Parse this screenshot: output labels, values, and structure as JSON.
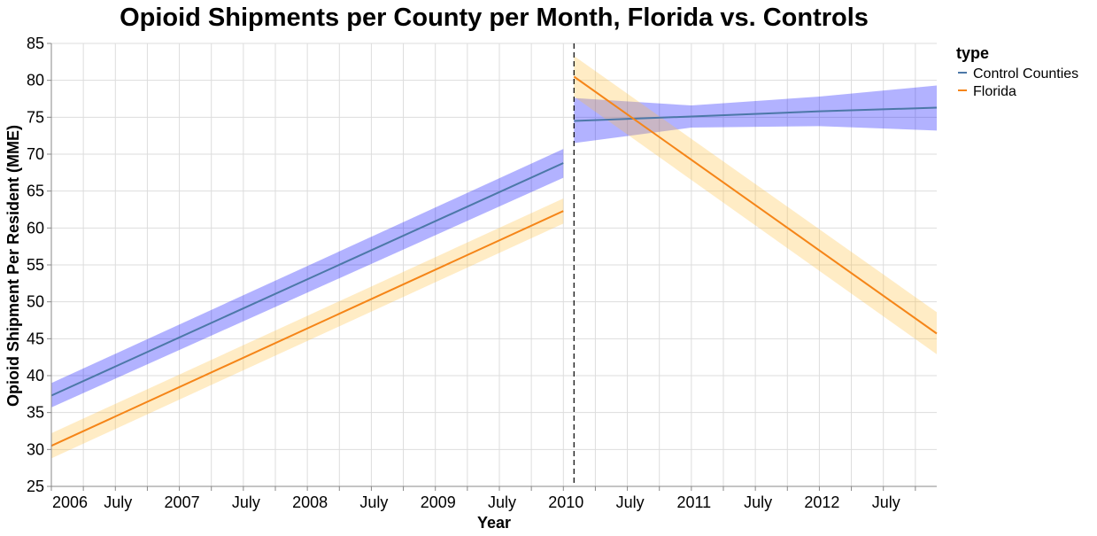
{
  "chart_data": {
    "type": "line",
    "title": "Opioid Shipments per County per Month, Florida vs. Controls",
    "xlabel": "Year",
    "ylabel": "Opioid Shipment Per Resident (MME)",
    "x_unit": "year",
    "xlim": [
      2006.0,
      2012.917
    ],
    "ylim": [
      25,
      85
    ],
    "yticks": [
      25,
      30,
      35,
      40,
      45,
      50,
      55,
      60,
      65,
      70,
      75,
      80,
      85
    ],
    "xticks": [
      {
        "value": 2006.0,
        "label": "2006"
      },
      {
        "value": 2006.5,
        "label": "July"
      },
      {
        "value": 2007.0,
        "label": "2007"
      },
      {
        "value": 2007.5,
        "label": "July"
      },
      {
        "value": 2008.0,
        "label": "2008"
      },
      {
        "value": 2008.5,
        "label": "July"
      },
      {
        "value": 2009.0,
        "label": "2009"
      },
      {
        "value": 2009.5,
        "label": "July"
      },
      {
        "value": 2010.0,
        "label": "2010"
      },
      {
        "value": 2010.5,
        "label": "July"
      },
      {
        "value": 2011.0,
        "label": "2011"
      },
      {
        "value": 2011.5,
        "label": "July"
      },
      {
        "value": 2012.0,
        "label": "2012"
      },
      {
        "value": 2012.5,
        "label": "July"
      }
    ],
    "grid": true,
    "policy_line_x": 2010.083,
    "legend": {
      "title": "type",
      "placement": "top-right"
    },
    "series": [
      {
        "name": "Control Counties",
        "color": "#4c78a8",
        "band_color": "#0000ff",
        "segments": [
          {
            "x": [
              2006.0,
              2010.0
            ],
            "y": [
              37.3,
              68.8
            ],
            "lower": [
              35.7,
              66.8
            ],
            "upper": [
              39.0,
              70.7
            ]
          },
          {
            "x": [
              2010.083,
              2011.0,
              2012.0,
              2012.917
            ],
            "y": [
              74.5,
              75.1,
              75.8,
              76.3
            ],
            "lower": [
              71.5,
              73.6,
              73.8,
              73.2
            ],
            "upper": [
              77.6,
              76.6,
              77.8,
              79.3
            ]
          }
        ]
      },
      {
        "name": "Florida",
        "color": "#f58518",
        "band_color": "#ffbf3f",
        "segments": [
          {
            "x": [
              2006.0,
              2010.0
            ],
            "y": [
              30.5,
              62.3
            ],
            "lower": [
              28.8,
              60.6
            ],
            "upper": [
              32.2,
              64.0
            ]
          },
          {
            "x": [
              2010.083,
              2012.917
            ],
            "y": [
              80.5,
              45.7
            ],
            "lower": [
              77.8,
              42.9
            ],
            "upper": [
              83.3,
              48.6
            ]
          }
        ]
      }
    ]
  }
}
